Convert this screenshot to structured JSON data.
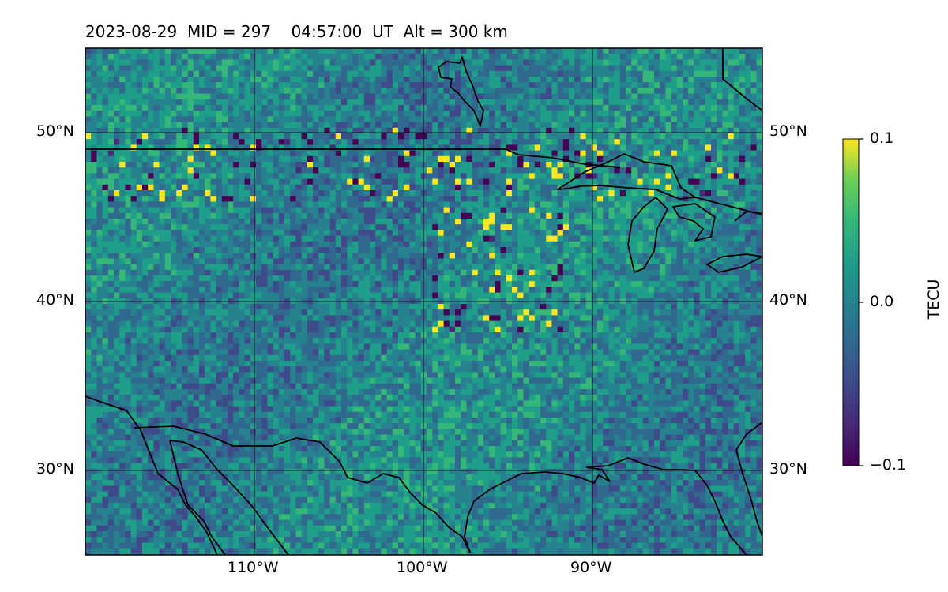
{
  "title": "2023-08-29  MID = 297    04:57:00  UT  Alt = 300 km",
  "map": {
    "projection": "equirectangular",
    "lon_range": [
      -120,
      -80
    ],
    "lat_range": [
      25,
      55
    ],
    "gridlines": true,
    "lat_ticks": [
      {
        "value": 50,
        "label": "50°N"
      },
      {
        "value": 40,
        "label": "40°N"
      },
      {
        "value": 30,
        "label": "30°N"
      }
    ],
    "lon_ticks": [
      {
        "value": -110,
        "label": "110°W"
      },
      {
        "value": -100,
        "label": "100°W"
      },
      {
        "value": -90,
        "label": "90°W"
      }
    ],
    "features": [
      "coastlines",
      "us-canada border",
      "great lakes",
      "gulf of mexico",
      "gulf of california"
    ]
  },
  "colorbar": {
    "label": "TECU",
    "colormap": "viridis",
    "min": -0.1,
    "max": 0.1,
    "ticks": [
      {
        "value": 0.1,
        "label": "0.1"
      },
      {
        "value": 0.0,
        "label": "0.0"
      },
      {
        "value": -0.1,
        "label": "−0.1"
      }
    ]
  }
}
